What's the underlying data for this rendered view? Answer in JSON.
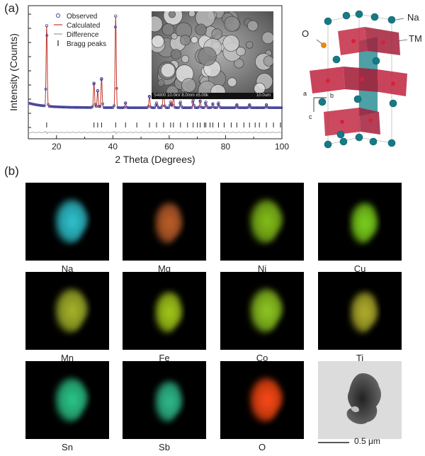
{
  "panel_a": {
    "label": "(a)",
    "xrd": {
      "x_axis_label": "2 Theta (Degrees)",
      "y_axis_label": "Intensity (Counts)",
      "x_ticks": [
        "20",
        "40",
        "60",
        "80",
        "100"
      ],
      "legend": {
        "observed": "Observed",
        "calculated": "Calculated",
        "difference": "Difference",
        "bragg": "Bragg peaks"
      }
    },
    "sem_inset": {
      "footer_left": "S4800 10.0kV 8.0mm x5.00k",
      "footer_right": "10.0um"
    },
    "crystal": {
      "label_na": "Na",
      "label_tm": "TM",
      "label_o": "O",
      "axis_a": "a",
      "axis_b": "b",
      "axis_c": "c"
    }
  },
  "panel_b": {
    "label": "(b)",
    "maps": [
      {
        "element": "Na",
        "color": "#2fc6d2"
      },
      {
        "element": "Mg",
        "color": "#c0602a"
      },
      {
        "element": "Ni",
        "color": "#86c21a"
      },
      {
        "element": "Cu",
        "color": "#7ed51c"
      },
      {
        "element": "Mn",
        "color": "#a8b82a"
      },
      {
        "element": "Fe",
        "color": "#a6cd1a"
      },
      {
        "element": "Co",
        "color": "#92cb22"
      },
      {
        "element": "Ti",
        "color": "#b4b22c"
      },
      {
        "element": "Sn",
        "color": "#2bc98a"
      },
      {
        "element": "Sb",
        "color": "#2fbf8e"
      },
      {
        "element": "O",
        "color": "#ff4a14"
      }
    ],
    "tem": {
      "scale_bar": "0.5 μm"
    }
  },
  "chart_data": {
    "type": "line",
    "title": "",
    "xlabel": "2 Theta (Degrees)",
    "ylabel": "Intensity (Counts)",
    "xlim": [
      10,
      100
    ],
    "ylim": [
      0,
      1
    ],
    "background": 0.06,
    "peaks": [
      {
        "x": 16.5,
        "y": 0.86
      },
      {
        "x": 33.3,
        "y": 0.26
      },
      {
        "x": 34.6,
        "y": 0.18
      },
      {
        "x": 36.0,
        "y": 0.31
      },
      {
        "x": 41.0,
        "y": 0.98
      },
      {
        "x": 44.5,
        "y": 0.05
      },
      {
        "x": 53.0,
        "y": 0.12
      },
      {
        "x": 55.5,
        "y": 0.05
      },
      {
        "x": 58.0,
        "y": 0.26
      },
      {
        "x": 60.5,
        "y": 0.06
      },
      {
        "x": 61.5,
        "y": 0.13
      },
      {
        "x": 64.0,
        "y": 0.06
      },
      {
        "x": 68.5,
        "y": 0.08
      },
      {
        "x": 71.0,
        "y": 0.07
      },
      {
        "x": 73.0,
        "y": 0.06
      },
      {
        "x": 75.5,
        "y": 0.04
      },
      {
        "x": 77.5,
        "y": 0.05
      },
      {
        "x": 84.0,
        "y": 0.03
      },
      {
        "x": 88.5,
        "y": 0.03
      },
      {
        "x": 94.5,
        "y": 0.03
      }
    ],
    "bragg_positions": [
      16.5,
      33.3,
      34.6,
      36.0,
      41.0,
      44.5,
      48.5,
      53.0,
      55.5,
      58.0,
      60.5,
      61.5,
      64.0,
      66.5,
      68.5,
      70.0,
      71.0,
      72.5,
      73.0,
      74.5,
      75.5,
      77.5,
      79.5,
      82.0,
      84.0,
      86.5,
      88.5,
      90.5,
      92.0,
      94.5,
      97.0,
      99.5
    ]
  }
}
